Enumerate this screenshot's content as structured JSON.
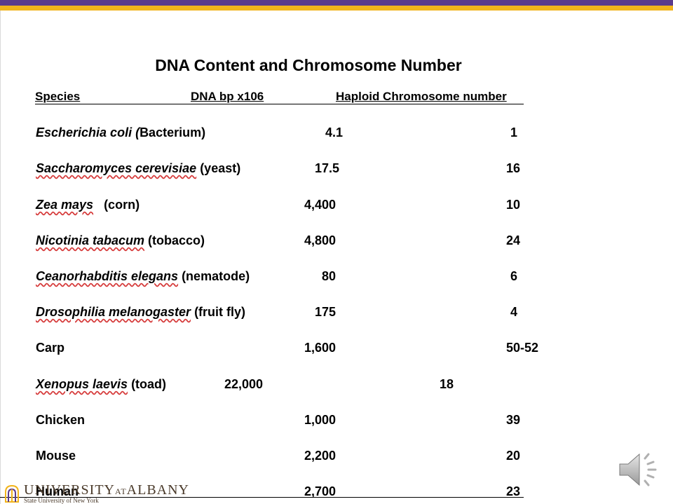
{
  "slide": {
    "title": "DNA Content and Chromosome Number",
    "header": {
      "species": "Species",
      "dna": "DNA bp x106",
      "chromosomes": "Haploid Chromosome number"
    },
    "rows": [
      {
        "latin": "Escherichia coli (",
        "common": "Bacterium)",
        "dna": "4.1",
        "chromosomes": "1"
      },
      {
        "latin": "Saccharomyces cerevisiae",
        "common": " (yeast)",
        "dna": "17.5",
        "chromosomes": "16"
      },
      {
        "latin": "Zea mays",
        "common": "   (corn)",
        "dna": "4,400",
        "chromosomes": "10"
      },
      {
        "latin": "Nicotinia tabacum",
        "common": " (tobacco)",
        "dna": "4,800",
        "chromosomes": "24"
      },
      {
        "latin": "Ceanorhabditis elegans",
        "common": " (nematode)",
        "dna": "80",
        "chromosomes": "6"
      },
      {
        "latin": "Drosophilia melanogaster",
        "common": " (fruit fly)",
        "dna": "175",
        "chromosomes": "4"
      },
      {
        "latin": "",
        "common": "Carp",
        "dna": "1,600",
        "chromosomes": "50-52"
      },
      {
        "latin": "Xenopus laevis",
        "common": " (toad)",
        "dna": "22,000",
        "chromosomes": "18"
      },
      {
        "latin": "",
        "common": "Chicken",
        "dna": "1,000",
        "chromosomes": "39"
      },
      {
        "latin": "",
        "common": "Mouse",
        "dna": "2,200",
        "chromosomes": "20"
      },
      {
        "latin": "",
        "common": "Human",
        "dna": "2,700",
        "chromosomes": "23"
      }
    ]
  },
  "branding": {
    "university_name": "UNIVERSITY",
    "university_at": "AT",
    "university_city": "ALBANY",
    "university_sub": "State University of New York",
    "accent_purple": "#5b3a8c",
    "accent_gold": "#f2b41b",
    "logo_icon": "minerva-emblem-icon"
  },
  "controls": {
    "audio_icon": "speaker-icon"
  }
}
